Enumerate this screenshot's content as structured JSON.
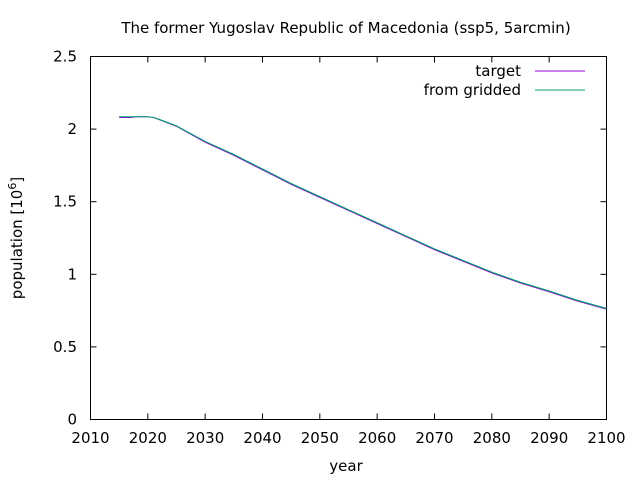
{
  "chart_data": {
    "type": "line",
    "title": "The former Yugoslav Republic of Macedonia (ssp5, 5arcmin)",
    "xlabel": "year",
    "ylabel_main": "population [10",
    "ylabel_exp": "6",
    "ylabel_close": "]",
    "xlim": [
      2010,
      2100
    ],
    "ylim": [
      0,
      2.5
    ],
    "xticks": [
      2010,
      2020,
      2030,
      2040,
      2050,
      2060,
      2070,
      2080,
      2090,
      2100
    ],
    "yticks": [
      0,
      0.5,
      1,
      1.5,
      2,
      2.5
    ],
    "ytick_labels": [
      "0",
      "0.5",
      "1",
      "1.5",
      "2",
      "2.5"
    ],
    "grid": false,
    "legend_position": "top-right",
    "series": [
      {
        "name": "target",
        "color": "#9400d3",
        "x": [
          2015,
          2016,
          2017,
          2018,
          2019,
          2020,
          2021,
          2022,
          2023,
          2025,
          2030,
          2035,
          2040,
          2045,
          2050,
          2055,
          2060,
          2065,
          2070,
          2075,
          2080,
          2085,
          2090,
          2095,
          2100
        ],
        "y": [
          2.08,
          2.08,
          2.08,
          2.085,
          2.085,
          2.085,
          2.08,
          2.065,
          2.05,
          2.02,
          1.91,
          1.82,
          1.72,
          1.62,
          1.53,
          1.44,
          1.35,
          1.26,
          1.17,
          1.09,
          1.01,
          0.94,
          0.88,
          0.815,
          0.76
        ]
      },
      {
        "name": "from gridded",
        "color": "#009e73",
        "x": [
          2015,
          2016,
          2017,
          2018,
          2019,
          2020,
          2021,
          2022,
          2023,
          2025,
          2030,
          2035,
          2040,
          2045,
          2050,
          2055,
          2060,
          2065,
          2070,
          2075,
          2080,
          2085,
          2090,
          2095,
          2100
        ],
        "y": [
          2.085,
          2.085,
          2.085,
          2.085,
          2.085,
          2.085,
          2.08,
          2.067,
          2.052,
          2.022,
          1.915,
          1.825,
          1.725,
          1.625,
          1.535,
          1.445,
          1.355,
          1.265,
          1.175,
          1.095,
          1.015,
          0.945,
          0.885,
          0.82,
          0.765
        ]
      }
    ]
  }
}
